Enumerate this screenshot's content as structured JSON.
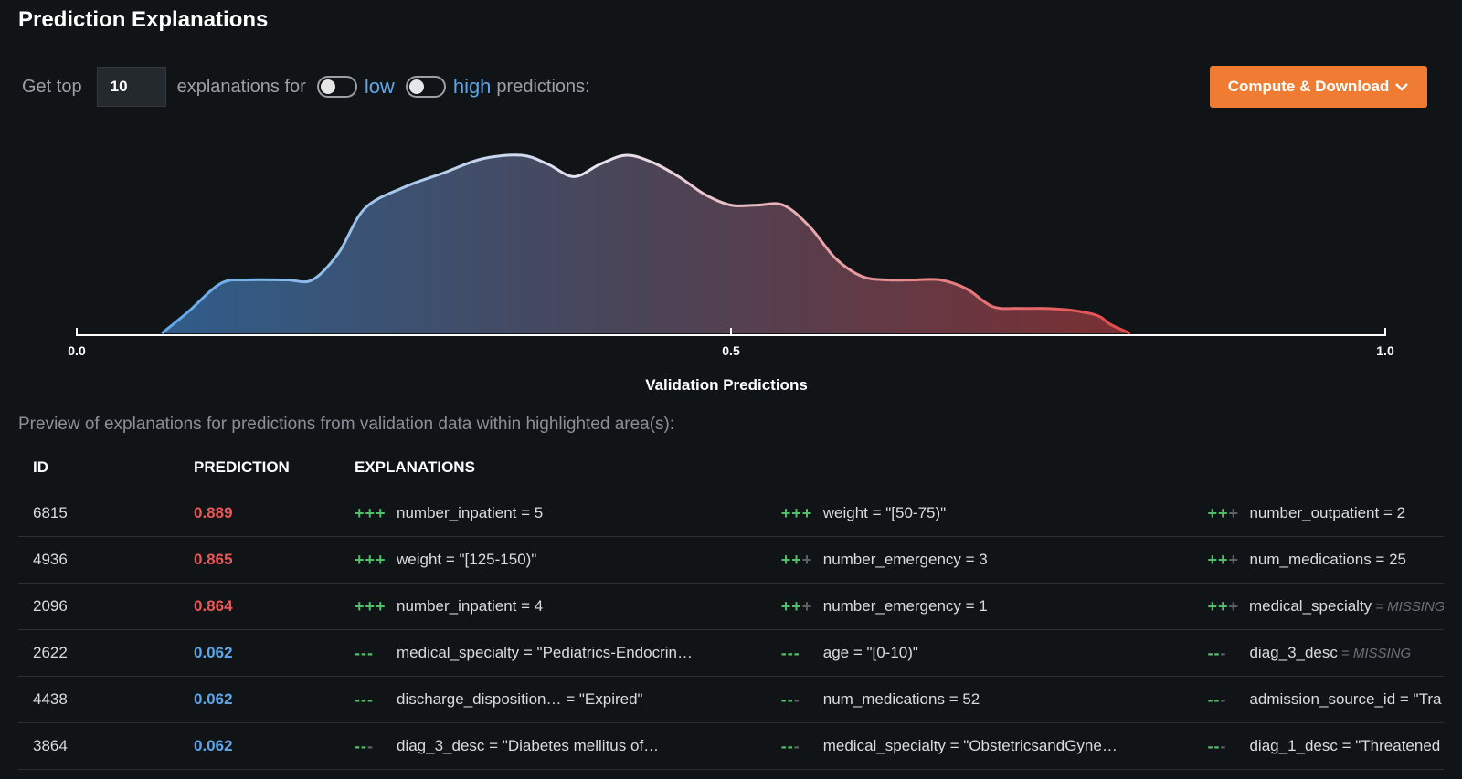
{
  "header": {
    "title": "Prediction Explanations"
  },
  "controls": {
    "get_top": "Get top",
    "top_n": "10",
    "explanations_for": "explanations for",
    "low_label": "low",
    "high_label": "high",
    "predictions_suffix": "predictions:",
    "low_enabled": false,
    "high_enabled": false,
    "compute_button": "Compute & Download"
  },
  "chart_data": {
    "type": "area",
    "title": "",
    "xlabel": "Validation Predictions",
    "ylabel": "",
    "xlim": [
      0.0,
      1.0
    ],
    "ticks": [
      "0.0",
      "0.5",
      "1.0"
    ],
    "x": [
      0.065,
      0.085,
      0.11,
      0.13,
      0.16,
      0.18,
      0.2,
      0.22,
      0.25,
      0.28,
      0.31,
      0.34,
      0.36,
      0.38,
      0.4,
      0.42,
      0.44,
      0.46,
      0.48,
      0.5,
      0.52,
      0.54,
      0.56,
      0.58,
      0.6,
      0.62,
      0.64,
      0.66,
      0.68,
      0.7,
      0.72,
      0.74,
      0.76,
      0.78,
      0.79,
      0.805
    ],
    "y": [
      0.0,
      0.12,
      0.28,
      0.3,
      0.3,
      0.3,
      0.45,
      0.7,
      0.82,
      0.9,
      0.98,
      1.0,
      0.95,
      0.88,
      0.95,
      1.0,
      0.96,
      0.88,
      0.78,
      0.72,
      0.72,
      0.72,
      0.6,
      0.42,
      0.32,
      0.3,
      0.3,
      0.3,
      0.25,
      0.15,
      0.14,
      0.14,
      0.13,
      0.1,
      0.05,
      0.0
    ],
    "color_low": "#5fa6e8",
    "color_high": "#e34a4a"
  },
  "axis_title": "Validation Predictions",
  "preview_text": "Preview of explanations for predictions from validation data within highlighted area(s):",
  "table": {
    "headers": [
      "ID",
      "PREDICTION",
      "EXPLANATIONS"
    ],
    "rows": [
      {
        "id": "6815",
        "prediction": "0.889",
        "e1_sign": "+++",
        "e1_dim": "",
        "e1_text": "number_inpatient = 5",
        "e1_missing": "",
        "e2_sign": "+++",
        "e2_dim": "",
        "e2_text": "weight = \"[50-75)\"",
        "e2_missing": "",
        "e3_sign": "++",
        "e3_dim": "+",
        "e3_text": "number_outpatient = 2",
        "e3_missing": ""
      },
      {
        "id": "4936",
        "prediction": "0.865",
        "e1_sign": "+++",
        "e1_dim": "",
        "e1_text": "weight = \"[125-150)\"",
        "e1_missing": "",
        "e2_sign": "++",
        "e2_dim": "+",
        "e2_text": "number_emergency = 3",
        "e2_missing": "",
        "e3_sign": "++",
        "e3_dim": "+",
        "e3_text": "num_medications = 25",
        "e3_missing": ""
      },
      {
        "id": "2096",
        "prediction": "0.864",
        "e1_sign": "+++",
        "e1_dim": "",
        "e1_text": "number_inpatient = 4",
        "e1_missing": "",
        "e2_sign": "++",
        "e2_dim": "+",
        "e2_text": "number_emergency = 1",
        "e2_missing": "",
        "e3_sign": "++",
        "e3_dim": "+",
        "e3_text": "medical_specialty",
        "e3_missing": "= MISSING"
      },
      {
        "id": "2622",
        "prediction": "0.062",
        "e1_sign": "---",
        "e1_dim": "",
        "e1_text": "medical_specialty = \"Pediatrics-Endocrin…",
        "e1_missing": "",
        "e2_sign": "---",
        "e2_dim": "",
        "e2_text": "age = \"[0-10)\"",
        "e2_missing": "",
        "e3_sign": "--",
        "e3_dim": "-",
        "e3_text": "diag_3_desc",
        "e3_missing": "= MISSING"
      },
      {
        "id": "4438",
        "prediction": "0.062",
        "e1_sign": "---",
        "e1_dim": "",
        "e1_text": "discharge_disposition…  = \"Expired\"",
        "e1_missing": "",
        "e2_sign": "--",
        "e2_dim": "-",
        "e2_text": "num_medications = 52",
        "e2_missing": "",
        "e3_sign": "--",
        "e3_dim": "-",
        "e3_text": "admission_source_id = \"Tra",
        "e3_missing": ""
      },
      {
        "id": "3864",
        "prediction": "0.062",
        "e1_sign": "--",
        "e1_dim": "-",
        "e1_text": "diag_3_desc = \"Diabetes mellitus of…",
        "e1_missing": "",
        "e2_sign": "--",
        "e2_dim": "-",
        "e2_text": "medical_specialty = \"ObstetricsandGyne…",
        "e2_missing": "",
        "e3_sign": "--",
        "e3_dim": "-",
        "e3_text": "diag_1_desc = \"Threatened",
        "e3_missing": ""
      }
    ]
  }
}
